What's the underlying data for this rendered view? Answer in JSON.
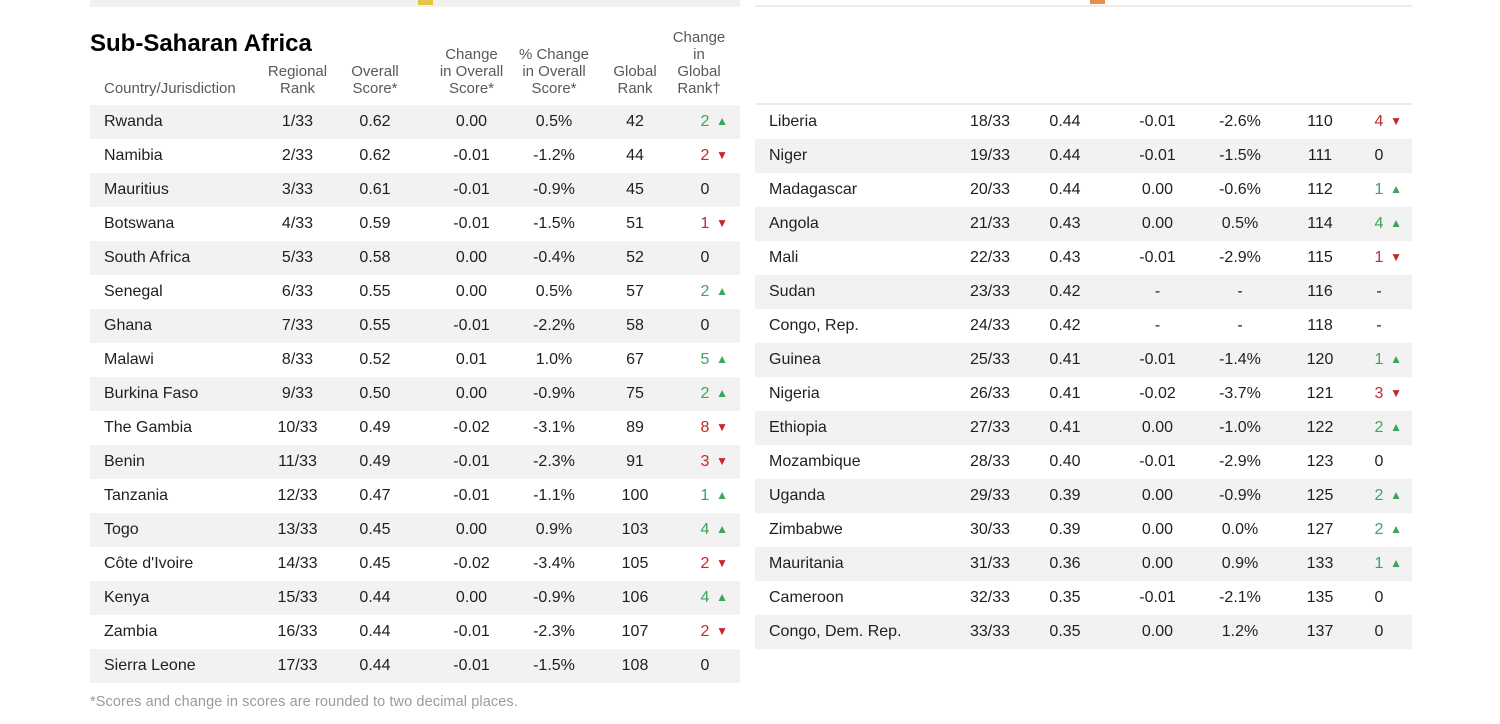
{
  "page": {
    "title": "Sub-Saharan Africa",
    "footnote": "*Scores and change in scores are rounded to two decimal places."
  },
  "columns": {
    "country": "Country/Jurisdiction",
    "regional_rank": "Regional\nRank",
    "overall_score": "Overall\nScore*",
    "change_overall": "Change\nin Overall\nScore*",
    "pct_change_overall": "% Change\nin Overall\nScore*",
    "global_rank": "Global\nRank",
    "change_global": "Change\nin Global\nRank†"
  },
  "colors": {
    "up_green": "#3ba55c",
    "down_red": "#c62828",
    "row_stripe": "#f2f2f2",
    "header_text": "#58595b",
    "partial_left_square": "#e6c544",
    "partial_right_square": "#e98e46"
  },
  "left_rows": [
    {
      "country": "Rwanda",
      "regional_rank": "1/33",
      "score": "0.62",
      "bar_color": "#b7bc58",
      "change": "0.00",
      "pct_change": "0.5%",
      "global_rank": "42",
      "global_change": "2",
      "direction": "up"
    },
    {
      "country": "Namibia",
      "regional_rank": "2/33",
      "score": "0.62",
      "bar_color": "#b7bc58",
      "change": "-0.01",
      "pct_change": "-1.2%",
      "global_rank": "44",
      "global_change": "2",
      "direction": "down"
    },
    {
      "country": "Mauritius",
      "regional_rank": "3/33",
      "score": "0.61",
      "bar_color": "#bfbe53",
      "change": "-0.01",
      "pct_change": "-0.9%",
      "global_rank": "45",
      "global_change": "0",
      "direction": "none"
    },
    {
      "country": "Botswana",
      "regional_rank": "4/33",
      "score": "0.59",
      "bar_color": "#c9c14d",
      "change": "-0.01",
      "pct_change": "-1.5%",
      "global_rank": "51",
      "global_change": "1",
      "direction": "down"
    },
    {
      "country": "South Africa",
      "regional_rank": "5/33",
      "score": "0.58",
      "bar_color": "#cfc24a",
      "change": "0.00",
      "pct_change": "-0.4%",
      "global_rank": "52",
      "global_change": "0",
      "direction": "none"
    },
    {
      "country": "Senegal",
      "regional_rank": "6/33",
      "score": "0.55",
      "bar_color": "#e0c440",
      "change": "0.00",
      "pct_change": "0.5%",
      "global_rank": "57",
      "global_change": "2",
      "direction": "up"
    },
    {
      "country": "Ghana",
      "regional_rank": "7/33",
      "score": "0.55",
      "bar_color": "#e4c43d",
      "change": "-0.01",
      "pct_change": "-2.2%",
      "global_rank": "58",
      "global_change": "0",
      "direction": "none"
    },
    {
      "country": "Malawi",
      "regional_rank": "8/33",
      "score": "0.52",
      "bar_color": "#f0c733",
      "change": "0.01",
      "pct_change": "1.0%",
      "global_rank": "67",
      "global_change": "5",
      "direction": "up"
    },
    {
      "country": "Burkina Faso",
      "regional_rank": "9/33",
      "score": "0.50",
      "bar_color": "#f5c328",
      "change": "0.00",
      "pct_change": "-0.9%",
      "global_rank": "75",
      "global_change": "2",
      "direction": "up"
    },
    {
      "country": "The Gambia",
      "regional_rank": "10/33",
      "score": "0.49",
      "bar_color": "#f6c124",
      "change": "-0.02",
      "pct_change": "-3.1%",
      "global_rank": "89",
      "global_change": "8",
      "direction": "down"
    },
    {
      "country": "Benin",
      "regional_rank": "11/33",
      "score": "0.49",
      "bar_color": "#f6bf25",
      "change": "-0.01",
      "pct_change": "-2.3%",
      "global_rank": "91",
      "global_change": "3",
      "direction": "down"
    },
    {
      "country": "Tanzania",
      "regional_rank": "12/33",
      "score": "0.47",
      "bar_color": "#f5b92b",
      "change": "-0.01",
      "pct_change": "-1.1%",
      "global_rank": "100",
      "global_change": "1",
      "direction": "up"
    },
    {
      "country": "Togo",
      "regional_rank": "13/33",
      "score": "0.45",
      "bar_color": "#f4b22f",
      "change": "0.00",
      "pct_change": "0.9%",
      "global_rank": "103",
      "global_change": "4",
      "direction": "up"
    },
    {
      "country": "Côte d'Ivoire",
      "regional_rank": "14/33",
      "score": "0.45",
      "bar_color": "#f3af31",
      "change": "-0.02",
      "pct_change": "-3.4%",
      "global_rank": "105",
      "global_change": "2",
      "direction": "down"
    },
    {
      "country": "Kenya",
      "regional_rank": "15/33",
      "score": "0.44",
      "bar_color": "#f2ab34",
      "change": "0.00",
      "pct_change": "-0.9%",
      "global_rank": "106",
      "global_change": "4",
      "direction": "up"
    },
    {
      "country": "Zambia",
      "regional_rank": "16/33",
      "score": "0.44",
      "bar_color": "#f1a836",
      "change": "-0.01",
      "pct_change": "-2.3%",
      "global_rank": "107",
      "global_change": "2",
      "direction": "down"
    },
    {
      "country": "Sierra Leone",
      "regional_rank": "17/33",
      "score": "0.44",
      "bar_color": "#f0a638",
      "change": "-0.01",
      "pct_change": "-1.5%",
      "global_rank": "108",
      "global_change": "0",
      "direction": "none"
    }
  ],
  "right_rows": [
    {
      "country": "Liberia",
      "regional_rank": "18/33",
      "score": "0.44",
      "bar_color": "#f0a93a",
      "change": "-0.01",
      "pct_change": "-2.6%",
      "global_rank": "110",
      "global_change": "4",
      "direction": "down"
    },
    {
      "country": "Niger",
      "regional_rank": "19/33",
      "score": "0.44",
      "bar_color": "#f0a93a",
      "change": "-0.01",
      "pct_change": "-1.5%",
      "global_rank": "111",
      "global_change": "0",
      "direction": "none"
    },
    {
      "country": "Madagascar",
      "regional_rank": "20/33",
      "score": "0.44",
      "bar_color": "#f0a83b",
      "change": "0.00",
      "pct_change": "-0.6%",
      "global_rank": "112",
      "global_change": "1",
      "direction": "up"
    },
    {
      "country": "Angola",
      "regional_rank": "21/33",
      "score": "0.43",
      "bar_color": "#f0a53c",
      "change": "0.00",
      "pct_change": "0.5%",
      "global_rank": "114",
      "global_change": "4",
      "direction": "up"
    },
    {
      "country": "Mali",
      "regional_rank": "22/33",
      "score": "0.43",
      "bar_color": "#f0a43c",
      "change": "-0.01",
      "pct_change": "-2.9%",
      "global_rank": "115",
      "global_change": "1",
      "direction": "down"
    },
    {
      "country": "Sudan",
      "regional_rank": "23/33",
      "score": "0.42",
      "bar_color": "#f0a23d",
      "change": "-",
      "pct_change": "-",
      "global_rank": "116",
      "global_change": "-",
      "direction": "na"
    },
    {
      "country": "Congo, Rep.",
      "regional_rank": "24/33",
      "score": "0.42",
      "bar_color": "#f0a23d",
      "change": "-",
      "pct_change": "-",
      "global_rank": "118",
      "global_change": "-",
      "direction": "na"
    },
    {
      "country": "Guinea",
      "regional_rank": "25/33",
      "score": "0.41",
      "bar_color": "#f0a03e",
      "change": "-0.01",
      "pct_change": "-1.4%",
      "global_rank": "120",
      "global_change": "1",
      "direction": "up"
    },
    {
      "country": "Nigeria",
      "regional_rank": "26/33",
      "score": "0.41",
      "bar_color": "#f09f3e",
      "change": "-0.02",
      "pct_change": "-3.7%",
      "global_rank": "121",
      "global_change": "3",
      "direction": "down"
    },
    {
      "country": "Ethiopia",
      "regional_rank": "27/33",
      "score": "0.41",
      "bar_color": "#f09e3f",
      "change": "0.00",
      "pct_change": "-1.0%",
      "global_rank": "122",
      "global_change": "2",
      "direction": "up"
    },
    {
      "country": "Mozambique",
      "regional_rank": "28/33",
      "score": "0.40",
      "bar_color": "#ef9c40",
      "change": "-0.01",
      "pct_change": "-2.9%",
      "global_rank": "123",
      "global_change": "0",
      "direction": "none"
    },
    {
      "country": "Uganda",
      "regional_rank": "29/33",
      "score": "0.39",
      "bar_color": "#ef9941",
      "change": "0.00",
      "pct_change": "-0.9%",
      "global_rank": "125",
      "global_change": "2",
      "direction": "up"
    },
    {
      "country": "Zimbabwe",
      "regional_rank": "30/33",
      "score": "0.39",
      "bar_color": "#ef9941",
      "change": "0.00",
      "pct_change": "0.0%",
      "global_rank": "127",
      "global_change": "2",
      "direction": "up"
    },
    {
      "country": "Mauritania",
      "regional_rank": "31/33",
      "score": "0.36",
      "bar_color": "#ee9143",
      "change": "0.00",
      "pct_change": "0.9%",
      "global_rank": "133",
      "global_change": "1",
      "direction": "up"
    },
    {
      "country": "Cameroon",
      "regional_rank": "32/33",
      "score": "0.35",
      "bar_color": "#ed8d43",
      "change": "-0.01",
      "pct_change": "-2.1%",
      "global_rank": "135",
      "global_change": "0",
      "direction": "none"
    },
    {
      "country": "Congo, Dem. Rep.",
      "regional_rank": "33/33",
      "score": "0.35",
      "bar_color": "#ed8b42",
      "change": "0.00",
      "pct_change": "1.2%",
      "global_rank": "137",
      "global_change": "0",
      "direction": "none"
    }
  ]
}
